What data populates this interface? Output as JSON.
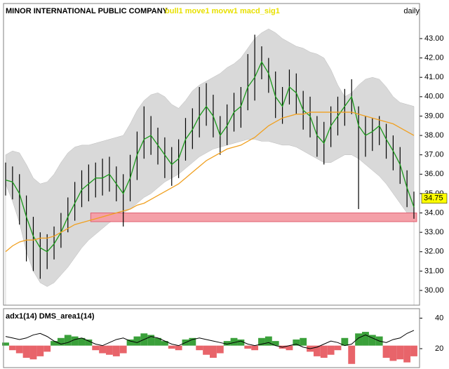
{
  "chart_data": [
    {
      "type": "hilo",
      "title": "MINOR INTERNATIONAL PUBLIC COMPANY",
      "indicators": "bull1 move1 movw1 macd_sig1",
      "period": "daily",
      "high": [
        36.6,
        36.4,
        36.0,
        34.9,
        33.8,
        33.0,
        32.9,
        33.3,
        34.0,
        34.8,
        35.6,
        36.2,
        36.5,
        36.6,
        36.8,
        36.9,
        36.4,
        36.0,
        37.0,
        38.2,
        39.5,
        39.0,
        38.4,
        37.9,
        37.4,
        37.8,
        38.9,
        39.4,
        40.5,
        40.7,
        40.1,
        39.0,
        39.6,
        40.2,
        40.5,
        42.2,
        43.2,
        42.6,
        42.0,
        41.3,
        40.5,
        41.4,
        41.2,
        40.3,
        40.0,
        39.0,
        38.7,
        39.5,
        40.0,
        40.4,
        40.9,
        39.5,
        39.0,
        38.9,
        39.0,
        38.6,
        38.0,
        37.4,
        36.2,
        35.1
      ],
      "low": [
        34.9,
        34.7,
        33.4,
        31.5,
        31.0,
        30.6,
        31.1,
        31.6,
        32.2,
        33.0,
        33.6,
        34.3,
        34.6,
        34.8,
        34.9,
        35.1,
        34.6,
        33.3,
        34.6,
        35.7,
        36.8,
        37.0,
        36.5,
        35.8,
        35.4,
        35.8,
        36.7,
        37.3,
        37.9,
        38.5,
        37.9,
        37.0,
        37.5,
        38.2,
        38.4,
        39.3,
        39.8,
        40.9,
        40.2,
        38.9,
        38.6,
        39.6,
        39.1,
        38.3,
        37.9,
        36.9,
        36.5,
        37.4,
        38.0,
        38.5,
        39.1,
        34.2,
        36.9,
        37.2,
        37.5,
        36.8,
        36.2,
        35.5,
        34.3,
        33.7
      ],
      "series": [
        {
          "color": "#1a9a1a",
          "values": [
            35.7,
            35.6,
            35.0,
            33.8,
            32.8,
            32.2,
            32.0,
            32.4,
            33.0,
            33.8,
            34.5,
            35.2,
            35.5,
            35.8,
            35.8,
            36.0,
            35.5,
            35.0,
            35.8,
            37.0,
            37.8,
            38.0,
            37.5,
            37.0,
            36.5,
            36.8,
            37.8,
            38.3,
            39.0,
            39.5,
            39.0,
            38.0,
            38.5,
            39.2,
            39.5,
            40.5,
            41.0,
            41.8,
            41.2,
            40.0,
            39.5,
            40.5,
            40.2,
            39.3,
            39.0,
            38.0,
            37.6,
            38.5,
            39.0,
            39.5,
            40.0,
            38.5,
            38.0,
            38.2,
            38.5,
            37.8,
            37.2,
            36.5,
            35.3,
            34.3
          ]
        },
        {
          "color": "#f0a020",
          "values": [
            32.0,
            32.3,
            32.5,
            32.6,
            32.6,
            32.7,
            32.7,
            32.8,
            33.0,
            33.2,
            33.4,
            33.5,
            33.6,
            33.7,
            33.8,
            33.9,
            34.0,
            34.1,
            34.2,
            34.4,
            34.5,
            34.7,
            34.9,
            35.1,
            35.3,
            35.5,
            35.8,
            36.1,
            36.4,
            36.7,
            36.9,
            37.1,
            37.3,
            37.4,
            37.5,
            37.7,
            37.9,
            38.2,
            38.5,
            38.7,
            38.9,
            39.0,
            39.1,
            39.1,
            39.2,
            39.2,
            39.2,
            39.2,
            39.2,
            39.2,
            39.2,
            39.1,
            39.0,
            38.9,
            38.8,
            38.7,
            38.6,
            38.4,
            38.2,
            38.0
          ]
        }
      ],
      "band_color": "#d9d9d9",
      "upper": [
        37.0,
        37.2,
        37.1,
        36.5,
        35.8,
        35.5,
        35.6,
        36.0,
        36.6,
        37.1,
        37.4,
        37.5,
        37.5,
        37.6,
        37.7,
        37.8,
        37.9,
        38.0,
        38.6,
        39.3,
        39.8,
        40.1,
        40.2,
        40.0,
        39.6,
        39.4,
        39.8,
        40.3,
        40.6,
        40.8,
        41.0,
        41.2,
        41.5,
        41.7,
        42.0,
        42.5,
        43.0,
        43.3,
        43.5,
        43.3,
        43.0,
        42.8,
        42.6,
        42.5,
        42.3,
        42.2,
        42.0,
        41.4,
        40.6,
        40.0,
        40.2,
        40.6,
        40.9,
        41.0,
        40.9,
        40.5,
        40.0,
        39.7,
        39.6,
        39.5
      ],
      "lower": [
        35.5,
        34.6,
        33.5,
        32.0,
        31.0,
        30.4,
        30.2,
        30.4,
        30.8,
        31.2,
        31.7,
        32.2,
        32.6,
        32.9,
        33.2,
        33.5,
        33.7,
        34.0,
        34.2,
        34.5,
        34.8,
        35.0,
        35.3,
        35.6,
        35.8,
        36.0,
        36.3,
        36.6,
        36.9,
        37.1,
        37.3,
        37.4,
        37.5,
        37.6,
        37.7,
        37.8,
        37.8,
        37.7,
        37.7,
        37.6,
        37.5,
        37.5,
        37.4,
        37.2,
        37.0,
        36.8,
        36.6,
        36.6,
        36.8,
        37.0,
        37.0,
        36.8,
        36.5,
        36.2,
        35.9,
        35.5,
        35.0,
        34.5,
        34.0,
        33.5
      ],
      "zone": {
        "low": 33.55,
        "high": 34.0,
        "from_bar": 12.3,
        "color": "#f4a0a8"
      },
      "last_price": {
        "value": 34.75,
        "label": "34.75"
      },
      "ylim": [
        29.24,
        44.81
      ],
      "yticks": [
        {
          "value": 30,
          "label": "30.00"
        },
        {
          "value": 31,
          "label": "31.00"
        },
        {
          "value": 32,
          "label": "32.00"
        },
        {
          "value": 33,
          "label": "33.00"
        },
        {
          "value": 34,
          "label": "34.00"
        },
        {
          "value": 35,
          "label": "35.00"
        },
        {
          "value": 36,
          "label": "36.00"
        },
        {
          "value": 37,
          "label": "37.00"
        },
        {
          "value": 38,
          "label": "38.00"
        },
        {
          "value": 39,
          "label": "39.00"
        },
        {
          "value": 40,
          "label": "40.00"
        },
        {
          "value": 41,
          "label": "41.00"
        },
        {
          "value": 42,
          "label": "42.00"
        },
        {
          "value": 43,
          "label": "43.00"
        }
      ]
    },
    {
      "type": "area-bar",
      "title": "adx1(14) DMS_area1(14)",
      "baseline": 22,
      "up_color": "#3aa03a",
      "down_color": "#e8646a",
      "line_color": "#000000",
      "dms": [
        2,
        -3,
        -5,
        -8,
        -9,
        -7,
        -4,
        3,
        5,
        7,
        6,
        5,
        4,
        -3,
        -5,
        -6,
        -7,
        -5,
        4,
        6,
        8,
        7,
        5,
        3,
        -2,
        -3,
        4,
        5,
        -3,
        -6,
        -8,
        -5,
        3,
        5,
        4,
        -2,
        -3,
        5,
        6,
        3,
        -2,
        -3,
        4,
        5,
        -4,
        -7,
        -8,
        -6,
        -3,
        5,
        -12,
        8,
        9,
        7,
        6,
        -8,
        -10,
        -9,
        -11,
        -7
      ],
      "adx": [
        28,
        27,
        26,
        27,
        29,
        30,
        28,
        25,
        23,
        24,
        26,
        27,
        25,
        23,
        22,
        24,
        26,
        27,
        25,
        24,
        26,
        28,
        27,
        25,
        23,
        22,
        24,
        26,
        27,
        26,
        25,
        24,
        23,
        24,
        25,
        23,
        22,
        23,
        24,
        22,
        21,
        22,
        23,
        21,
        20,
        21,
        23,
        25,
        24,
        22,
        23,
        27,
        29,
        27,
        25,
        24,
        26,
        27,
        30,
        32
      ],
      "ylim": [
        7.6,
        46.2
      ],
      "yticks": [
        20,
        40
      ]
    }
  ]
}
